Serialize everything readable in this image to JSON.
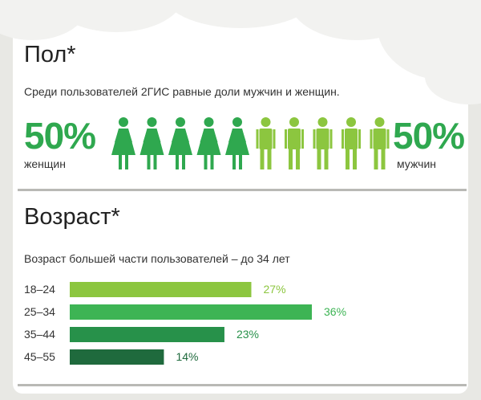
{
  "gender": {
    "title": "Пол*",
    "subtitle": "Среди пользователей 2ГИС равные доли мужчин и женщин.",
    "women": {
      "percent": "50%",
      "label": "женщин",
      "count_icons": 5,
      "color": "#2fa84f",
      "icon": "woman-icon"
    },
    "men": {
      "percent": "50%",
      "label": "мужчин",
      "count_icons": 5,
      "color": "#8cc63f",
      "icon": "man-icon"
    }
  },
  "age": {
    "title": "Возраст*",
    "subtitle": "Возраст большей части пользователей – до 34 лет"
  },
  "chart_data": {
    "type": "bar",
    "orientation": "horizontal",
    "categories": [
      "18–24",
      "25–34",
      "35–44",
      "45–55"
    ],
    "values": [
      27,
      36,
      23,
      14
    ],
    "value_labels": [
      "27%",
      "36%",
      "23%",
      "14%"
    ],
    "colors": [
      "#8cc63f",
      "#3db454",
      "#27914a",
      "#1f6a3d"
    ],
    "xlim": [
      0,
      36
    ],
    "grid": false
  }
}
